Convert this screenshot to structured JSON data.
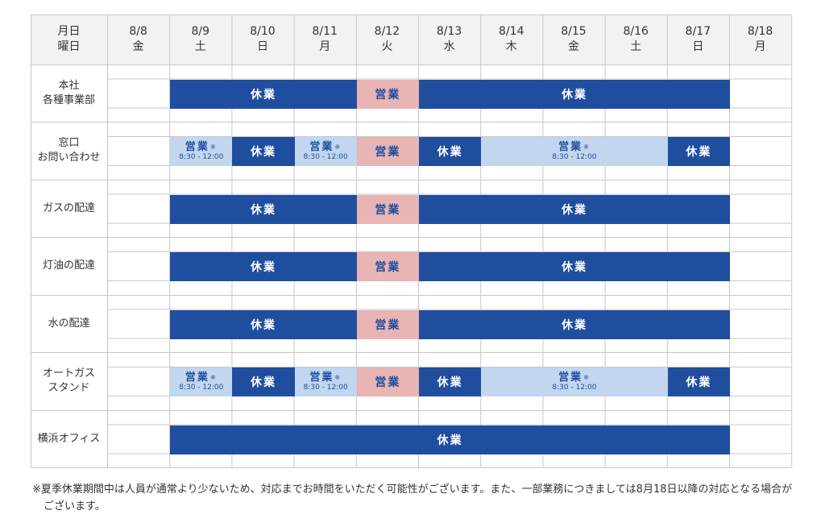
{
  "header": {
    "label_line1": "月日",
    "label_line2": "曜日",
    "days": [
      {
        "date": "8/8",
        "weekday": "金"
      },
      {
        "date": "8/9",
        "weekday": "土"
      },
      {
        "date": "8/10",
        "weekday": "日"
      },
      {
        "date": "8/11",
        "weekday": "月"
      },
      {
        "date": "8/12",
        "weekday": "火"
      },
      {
        "date": "8/13",
        "weekday": "水"
      },
      {
        "date": "8/14",
        "weekday": "木"
      },
      {
        "date": "8/15",
        "weekday": "金"
      },
      {
        "date": "8/16",
        "weekday": "土"
      },
      {
        "date": "8/17",
        "weekday": "日"
      },
      {
        "date": "8/18",
        "weekday": "月"
      }
    ]
  },
  "labels": {
    "closed": "休業",
    "open": "営業",
    "partial": "営業",
    "partial_mark": "※",
    "partial_hours": "8:30 - 12:00"
  },
  "rows": [
    {
      "name": [
        "本社",
        "各種事業部"
      ],
      "segments": [
        {
          "start": 1,
          "span": 3,
          "status": "closed"
        },
        {
          "start": 4,
          "span": 1,
          "status": "open"
        },
        {
          "start": 5,
          "span": 5,
          "status": "closed"
        }
      ]
    },
    {
      "name": [
        "窓口",
        "お問い合わせ"
      ],
      "segments": [
        {
          "start": 1,
          "span": 1,
          "status": "partial"
        },
        {
          "start": 2,
          "span": 1,
          "status": "closed"
        },
        {
          "start": 3,
          "span": 1,
          "status": "partial"
        },
        {
          "start": 4,
          "span": 1,
          "status": "open"
        },
        {
          "start": 5,
          "span": 1,
          "status": "closed"
        },
        {
          "start": 6,
          "span": 3,
          "status": "partial"
        },
        {
          "start": 9,
          "span": 1,
          "status": "closed"
        }
      ]
    },
    {
      "name": [
        "ガスの配達"
      ],
      "segments": [
        {
          "start": 1,
          "span": 3,
          "status": "closed"
        },
        {
          "start": 4,
          "span": 1,
          "status": "open"
        },
        {
          "start": 5,
          "span": 5,
          "status": "closed"
        }
      ]
    },
    {
      "name": [
        "灯油の配達"
      ],
      "segments": [
        {
          "start": 1,
          "span": 3,
          "status": "closed"
        },
        {
          "start": 4,
          "span": 1,
          "status": "open"
        },
        {
          "start": 5,
          "span": 5,
          "status": "closed"
        }
      ]
    },
    {
      "name": [
        "水の配達"
      ],
      "segments": [
        {
          "start": 1,
          "span": 3,
          "status": "closed"
        },
        {
          "start": 4,
          "span": 1,
          "status": "open"
        },
        {
          "start": 5,
          "span": 5,
          "status": "closed"
        }
      ]
    },
    {
      "name": [
        "オートガス",
        "スタンド"
      ],
      "segments": [
        {
          "start": 1,
          "span": 1,
          "status": "partial"
        },
        {
          "start": 2,
          "span": 1,
          "status": "closed"
        },
        {
          "start": 3,
          "span": 1,
          "status": "partial"
        },
        {
          "start": 4,
          "span": 1,
          "status": "open"
        },
        {
          "start": 5,
          "span": 1,
          "status": "closed"
        },
        {
          "start": 6,
          "span": 3,
          "status": "partial"
        },
        {
          "start": 9,
          "span": 1,
          "status": "closed"
        }
      ]
    },
    {
      "name": [
        "横浜オフィス"
      ],
      "segments": [
        {
          "start": 1,
          "span": 9,
          "status": "closed"
        }
      ]
    }
  ],
  "note": "※夏季休業期間中は人員が通常より少ないため、対応までお時間をいただく可能性がございます。また、一部業務につきましては8月18日以降の対応となる場合がございます。",
  "colors": {
    "closed_bg": "#1f4e9f",
    "open_bg": "#e8b4b4",
    "partial_bg": "#c2d6ef",
    "header_bg": "#f2f2f2",
    "grid_line": "#c8c8c8"
  }
}
